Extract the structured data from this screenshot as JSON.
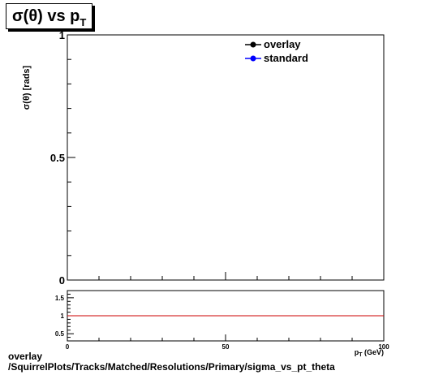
{
  "title": {
    "main": "σ(θ) vs p",
    "sub": "T"
  },
  "footer": {
    "line1": "overlay",
    "line2": "/SquirrelPlots/Tracks/Matched/Resolutions/Primary/sigma_vs_pt_theta"
  },
  "chart_data": [
    {
      "type": "line",
      "ylabel": "σ(θ) [rads]",
      "xlabel": "p_T (GeV)",
      "xlim": [
        0,
        100
      ],
      "ylim": [
        0,
        1
      ],
      "yticks": [
        "0",
        "0.5",
        "1"
      ],
      "xticks": [],
      "grid": false,
      "legend_position": "top-right",
      "series": [
        {
          "name": "overlay",
          "color": "#000000",
          "marker": "circle",
          "x": [],
          "y": []
        },
        {
          "name": "standard",
          "color": "#0000ff",
          "marker": "circle",
          "x": [],
          "y": []
        }
      ]
    },
    {
      "type": "line",
      "xlim": [
        0,
        100
      ],
      "ylim": [
        0.3,
        1.7
      ],
      "yticks": [
        "0.5",
        "1",
        "1.5"
      ],
      "xticks": [
        "0",
        "50",
        "100"
      ],
      "grid": false,
      "reference_line": {
        "y": 1,
        "color": "#cc0000"
      },
      "series": []
    }
  ]
}
